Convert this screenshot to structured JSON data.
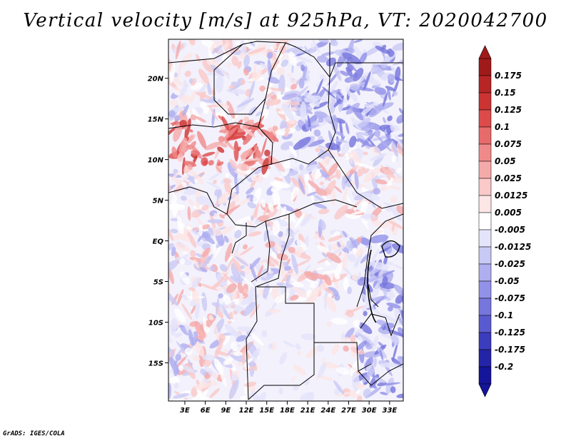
{
  "chart_data": {
    "type": "heatmap",
    "title": "Vertical velocity [m/s] at 925hPa, VT: 2020042700",
    "variable": "Vertical velocity",
    "units": "m/s",
    "level": "925hPa",
    "valid_time": "2020042700",
    "x_ticks": [
      "3E",
      "6E",
      "9E",
      "12E",
      "15E",
      "18E",
      "21E",
      "24E",
      "27E",
      "30E",
      "33E"
    ],
    "x_tick_values": [
      3,
      6,
      9,
      12,
      15,
      18,
      21,
      24,
      27,
      30,
      33
    ],
    "y_ticks": [
      "20N",
      "15N",
      "10N",
      "5N",
      "EQ",
      "5S",
      "10S",
      "15S"
    ],
    "y_tick_values": [
      20,
      15,
      10,
      5,
      0,
      -5,
      -10,
      -15
    ],
    "xlim": [
      0.6,
      35.0
    ],
    "ylim": [
      -19.7,
      24.8
    ],
    "colorbar": {
      "labels": [
        "0.175",
        "0.15",
        "0.125",
        "0.1",
        "0.075",
        "0.05",
        "0.025",
        "0.0125",
        "0.005",
        "-0.005",
        "-0.0125",
        "-0.025",
        "-0.05",
        "-0.075",
        "-0.1",
        "-0.125",
        "-0.175",
        "-0.2"
      ],
      "colors": [
        "#a01a1a",
        "#b82525",
        "#cc3333",
        "#dd4a4a",
        "#e86b6b",
        "#f08a8a",
        "#f5aaaa",
        "#fac9c9",
        "#fde6e6",
        "#ffffff",
        "#e4e4fb",
        "#c9c9f5",
        "#aeaef0",
        "#9191e8",
        "#7676dd",
        "#5a5ad0",
        "#3c3cbe",
        "#2424a8",
        "#14149a"
      ]
    }
  },
  "footer": "GrADS: IGES/COLA"
}
